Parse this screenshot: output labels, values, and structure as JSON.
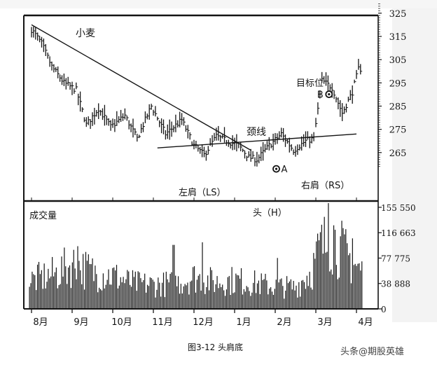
{
  "chart_data": [
    {
      "type": "ohlc",
      "title": "小麦",
      "y_ticks": [
        325,
        315,
        305,
        295,
        285,
        275,
        265
      ],
      "ylim": [
        259,
        329
      ],
      "x_months": [
        "8月",
        "9月",
        "10月",
        "11月",
        "12月",
        "1月",
        "2月",
        "3月",
        "4月"
      ],
      "price_path": {
        "x_month_index": [
          0.0,
          0.25,
          0.5,
          0.8,
          1.1,
          1.35,
          1.65,
          1.95,
          2.3,
          2.6,
          2.95,
          3.3,
          3.7,
          4.0,
          4.25,
          4.55,
          4.8,
          5.1,
          5.35,
          5.55,
          5.85,
          6.15,
          6.45,
          6.75,
          6.95,
          7.15,
          7.4,
          7.65,
          7.9,
          8.05
        ],
        "close": [
          318,
          312,
          302,
          295,
          292,
          277,
          284,
          276,
          281,
          271,
          285,
          273,
          279,
          268,
          264,
          272,
          270,
          268,
          263,
          262,
          268,
          273,
          266,
          270,
          271,
          296,
          293,
          282,
          291,
          301
        ]
      },
      "annotations": {
        "neckline": "颈线",
        "left_shoulder": "左肩（LS）",
        "head": "头（H）",
        "right_shoulder": "右肩（RS）",
        "target": "目标位",
        "point_a": "A",
        "point_b": "B"
      },
      "trendline": {
        "start": {
          "x_month_index": 0.0,
          "y": 320
        },
        "end": {
          "x_month_index": 5.4,
          "y": 266
        }
      },
      "neckline_line": {
        "start": {
          "x_month_index": 3.1,
          "y": 267
        },
        "end": {
          "x_month_index": 8.0,
          "y": 273
        }
      },
      "point_a_value": {
        "x_month_index": 5.75,
        "y": 261
      },
      "point_b_value": {
        "x_month_index": 7.1,
        "y": 291
      }
    },
    {
      "type": "bar",
      "title": "成交量",
      "y_ticks": [
        155550,
        116663,
        77775,
        38888,
        0
      ],
      "y_tick_labels": [
        "155 550",
        "116 663",
        "77 775",
        "38 888",
        "0"
      ],
      "ylim": [
        0,
        160000
      ],
      "x_months": [
        "8月",
        "9月",
        "10月",
        "11月",
        "12月",
        "1月",
        "2月",
        "3月",
        "4月"
      ],
      "volume_profile": {
        "x_month_index": [
          0.0,
          0.6,
          1.0,
          1.5,
          2.0,
          2.5,
          3.0,
          3.5,
          4.0,
          4.5,
          5.0,
          5.5,
          6.0,
          6.5,
          6.9,
          7.1,
          7.4,
          7.8,
          8.1
        ],
        "typical": [
          45000,
          55000,
          70000,
          58000,
          52000,
          40000,
          38000,
          40000,
          50000,
          42000,
          45000,
          40000,
          35000,
          34000,
          60000,
          95000,
          110000,
          80000,
          60000
        ],
        "peaks": [
          [
            1.15,
            96000
          ],
          [
            3.5,
            98000
          ],
          [
            4.2,
            102000
          ],
          [
            6.05,
            78000
          ],
          [
            7.3,
            162000
          ],
          [
            7.45,
            128000
          ],
          [
            7.9,
            108000
          ]
        ]
      }
    }
  ],
  "caption": "图3-12 头肩底",
  "watermark": {
    "prefix": "头条",
    "at": "@",
    "account": "期股英雄"
  },
  "colors": {
    "ink": "#141414",
    "paper": "#ffffff",
    "scan_shadow": "#e8e8e8"
  }
}
